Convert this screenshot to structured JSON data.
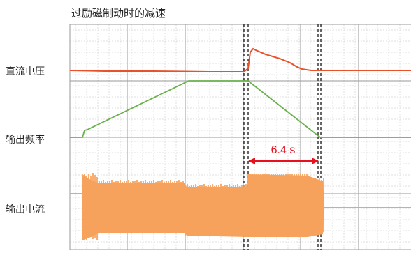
{
  "title": "过励磁制动时的减速",
  "chart_data": {
    "type": "line",
    "title": "过励磁制动时的减速",
    "channels": [
      {
        "name": "直流电压",
        "color": "#e8512a"
      },
      {
        "name": "输出频率",
        "color": "#6ab04c"
      },
      {
        "name": "输出电流",
        "color": "#f7a25c"
      }
    ],
    "annotation": {
      "text": "6.4 s",
      "color": "#e6101e"
    },
    "grid": true
  }
}
